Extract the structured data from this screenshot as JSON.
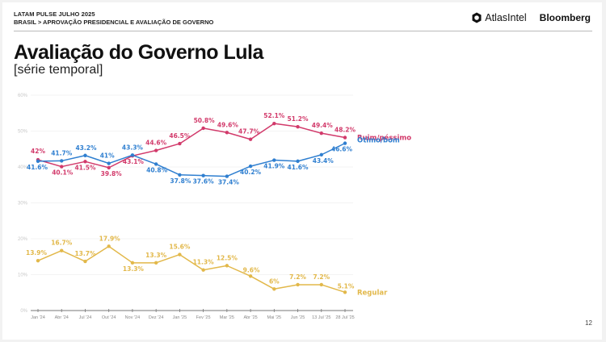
{
  "header": {
    "report": "LATAM PULSE JULHO 2025",
    "breadcrumb": "BRASIL > APROVAÇÃO PRESIDENCIAL E AVALIAÇÃO DE GOVERNO",
    "logos": {
      "atlas": "AtlasIntel",
      "bloomberg": "Bloomberg"
    }
  },
  "title": "Avaliação do Governo Lula",
  "subtitle": "[série temporal]",
  "page_number": "12",
  "chart_data": {
    "type": "line",
    "title": "Avaliação do Governo Lula",
    "subtitle": "[série temporal]",
    "xlabel": "",
    "ylabel": "",
    "ylim": [
      0,
      60
    ],
    "yticks": [
      0,
      10,
      20,
      30,
      40,
      50,
      60
    ],
    "ytick_labels": [
      "0%",
      "10%",
      "20%",
      "30%",
      "40%",
      "50%",
      "60%"
    ],
    "grid": true,
    "legend": "inline-right",
    "categories": [
      "Jan '24",
      "Abr '24",
      "Jul '24",
      "Out '24",
      "Nov '24",
      "Dez '24",
      "Jan '25",
      "Fev '25",
      "Mar '25",
      "Abr '25",
      "Mai '25",
      "Jun '25",
      "13 Jul '25",
      "28 Jul '25"
    ],
    "series": [
      {
        "name": "Ruim/péssimo",
        "color": "#d23a6b",
        "values": [
          42,
          40.1,
          41.5,
          39.8,
          43.1,
          44.6,
          46.5,
          50.8,
          49.6,
          47.7,
          52.1,
          51.2,
          49.4,
          48.2
        ],
        "labels": [
          "42%",
          "40.1%",
          "41.5%",
          "39.8%",
          "43.1%",
          "44.6%",
          "46.5%",
          "50.8%",
          "49.6%",
          "47.7%",
          "52.1%",
          "51.2%",
          "49.4%",
          "48.2%"
        ]
      },
      {
        "name": "Ótimo/bom",
        "color": "#2f7fd0",
        "values": [
          41.6,
          41.7,
          43.2,
          41,
          43.3,
          40.8,
          37.8,
          37.6,
          37.4,
          40.2,
          41.9,
          41.6,
          43.4,
          46.6
        ],
        "labels": [
          "41.6%",
          "41.7%",
          "43.2%",
          "41%",
          "43.3%",
          "40.8%",
          "37.8%",
          "37.6%",
          "37.4%",
          "40.2%",
          "41.9%",
          "41.6%",
          "43.4%",
          "46.6%"
        ]
      },
      {
        "name": "Regular",
        "color": "#e2b84a",
        "values": [
          13.9,
          16.7,
          13.7,
          17.9,
          13.3,
          13.3,
          15.6,
          11.3,
          12.5,
          9.6,
          6,
          7.2,
          7.2,
          5.1
        ],
        "labels": [
          "13.9%",
          "16.7%",
          "13.7%",
          "17.9%",
          "13.3%",
          "13.3%",
          "15.6%",
          "11.3%",
          "12.5%",
          "9.6%",
          "6%",
          "7.2%",
          "7.2%",
          "5.1%"
        ]
      }
    ]
  }
}
